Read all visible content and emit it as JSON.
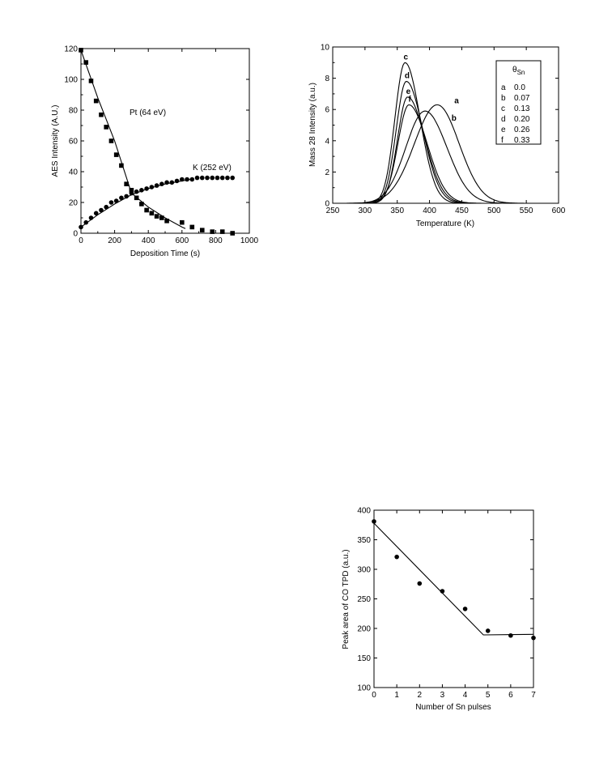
{
  "chart_data": [
    {
      "id": "aes",
      "type": "scatter",
      "xlabel": "Deposition Time (s)",
      "ylabel": "AES Intensity (A.U.)",
      "xlim": [
        0,
        1000
      ],
      "ylim": [
        0,
        120
      ],
      "xticks": [
        "0",
        "200",
        "400",
        "600",
        "800",
        "1000"
      ],
      "yticks": [
        "0",
        "20",
        "40",
        "60",
        "80",
        "100",
        "120"
      ],
      "series": [
        {
          "name": "Pt (64 eV)",
          "marker": "square",
          "points": [
            [
              0,
              119
            ],
            [
              30,
              111
            ],
            [
              60,
              99
            ],
            [
              90,
              86
            ],
            [
              120,
              77
            ],
            [
              150,
              69
            ],
            [
              180,
              60
            ],
            [
              210,
              51
            ],
            [
              240,
              44
            ],
            [
              270,
              32
            ],
            [
              300,
              28
            ],
            [
              330,
              23
            ],
            [
              360,
              19
            ],
            [
              390,
              15
            ],
            [
              420,
              13
            ],
            [
              450,
              11
            ],
            [
              480,
              10
            ],
            [
              510,
              8
            ],
            [
              600,
              7
            ],
            [
              660,
              4
            ],
            [
              720,
              2
            ],
            [
              780,
              1
            ],
            [
              840,
              1
            ],
            [
              900,
              0
            ]
          ],
          "fit": [
            [
              0,
              119
            ],
            [
              100,
              88
            ],
            [
              200,
              60
            ],
            [
              300,
              26
            ],
            [
              400,
              17
            ],
            [
              500,
              10
            ],
            [
              600,
              4
            ],
            [
              620,
              3
            ]
          ]
        },
        {
          "name": "K (252 eV)",
          "marker": "circle",
          "points": [
            [
              0,
              4
            ],
            [
              30,
              7
            ],
            [
              60,
              10
            ],
            [
              90,
              13
            ],
            [
              120,
              15
            ],
            [
              150,
              17
            ],
            [
              180,
              20
            ],
            [
              210,
              21
            ],
            [
              240,
              23
            ],
            [
              270,
              24
            ],
            [
              300,
              26
            ],
            [
              330,
              27
            ],
            [
              360,
              28
            ],
            [
              390,
              29
            ],
            [
              420,
              30
            ],
            [
              450,
              31
            ],
            [
              480,
              32
            ],
            [
              510,
              33
            ],
            [
              540,
              33
            ],
            [
              570,
              34
            ],
            [
              600,
              35
            ],
            [
              630,
              35
            ],
            [
              660,
              35
            ],
            [
              690,
              36
            ],
            [
              720,
              36
            ],
            [
              750,
              36
            ],
            [
              780,
              36
            ],
            [
              810,
              36
            ],
            [
              840,
              36
            ],
            [
              870,
              36
            ],
            [
              900,
              36
            ]
          ],
          "fit": [
            [
              0,
              4
            ],
            [
              100,
              12
            ],
            [
              200,
              19
            ],
            [
              300,
              25
            ],
            [
              400,
              29
            ],
            [
              500,
              32
            ],
            [
              600,
              34
            ],
            [
              650,
              35
            ]
          ]
        }
      ],
      "annotations": [
        "Pt (64 eV)",
        "K (252 eV)"
      ]
    },
    {
      "id": "tpd",
      "type": "line",
      "xlabel": "Temperature (K)",
      "ylabel": "Mass 28 Intensity (a.u.)",
      "xlim": [
        250,
        600
      ],
      "ylim": [
        0,
        10
      ],
      "xticks": [
        "250",
        "300",
        "350",
        "400",
        "450",
        "500",
        "550",
        "600"
      ],
      "yticks": [
        "0",
        "2",
        "4",
        "6",
        "8",
        "10"
      ],
      "legend": {
        "title": "θSn",
        "title_base": "θ",
        "title_sub": "Sn",
        "placement": "top-right",
        "entries": [
          {
            "label": "a",
            "value": "0.0"
          },
          {
            "label": "b",
            "value": "0.07"
          },
          {
            "label": "c",
            "value": "0.13"
          },
          {
            "label": "d",
            "value": "0.20"
          },
          {
            "label": "e",
            "value": "0.26"
          },
          {
            "label": "f",
            "value": "0.33"
          }
        ]
      },
      "series": [
        {
          "name": "a",
          "peak_x": 412,
          "peak_y": 6.3,
          "width_low": 50,
          "width_high": 48
        },
        {
          "name": "b",
          "peak_x": 393,
          "peak_y": 5.9,
          "width_low": 42,
          "width_high": 48
        },
        {
          "name": "c",
          "peak_x": 362,
          "peak_y": 9.0,
          "width_low": 22,
          "width_high": 33
        },
        {
          "name": "d",
          "peak_x": 364,
          "peak_y": 7.8,
          "width_low": 22,
          "width_high": 36
        },
        {
          "name": "e",
          "peak_x": 366,
          "peak_y": 6.8,
          "width_low": 22,
          "width_high": 38
        },
        {
          "name": "f",
          "peak_x": 368,
          "peak_y": 6.3,
          "width_low": 24,
          "width_high": 40
        }
      ],
      "curve_labels": [
        "a",
        "b",
        "c",
        "d",
        "e",
        "f"
      ]
    },
    {
      "id": "area",
      "type": "scatter",
      "xlabel": "Number of Sn pulses",
      "ylabel": "Peak area of CO TPD (a.u.)",
      "xlim": [
        0,
        7
      ],
      "ylim": [
        100,
        400
      ],
      "xticks": [
        "0",
        "1",
        "2",
        "3",
        "4",
        "5",
        "6",
        "7"
      ],
      "yticks": [
        "100",
        "150",
        "200",
        "250",
        "300",
        "350",
        "400"
      ],
      "points": [
        [
          0,
          381
        ],
        [
          1,
          321
        ],
        [
          2,
          276
        ],
        [
          3,
          263
        ],
        [
          4,
          233
        ],
        [
          5,
          196
        ],
        [
          6,
          188
        ],
        [
          7,
          184
        ]
      ],
      "fit": [
        [
          0,
          378
        ],
        [
          4.8,
          189
        ],
        [
          7,
          190
        ]
      ]
    }
  ]
}
